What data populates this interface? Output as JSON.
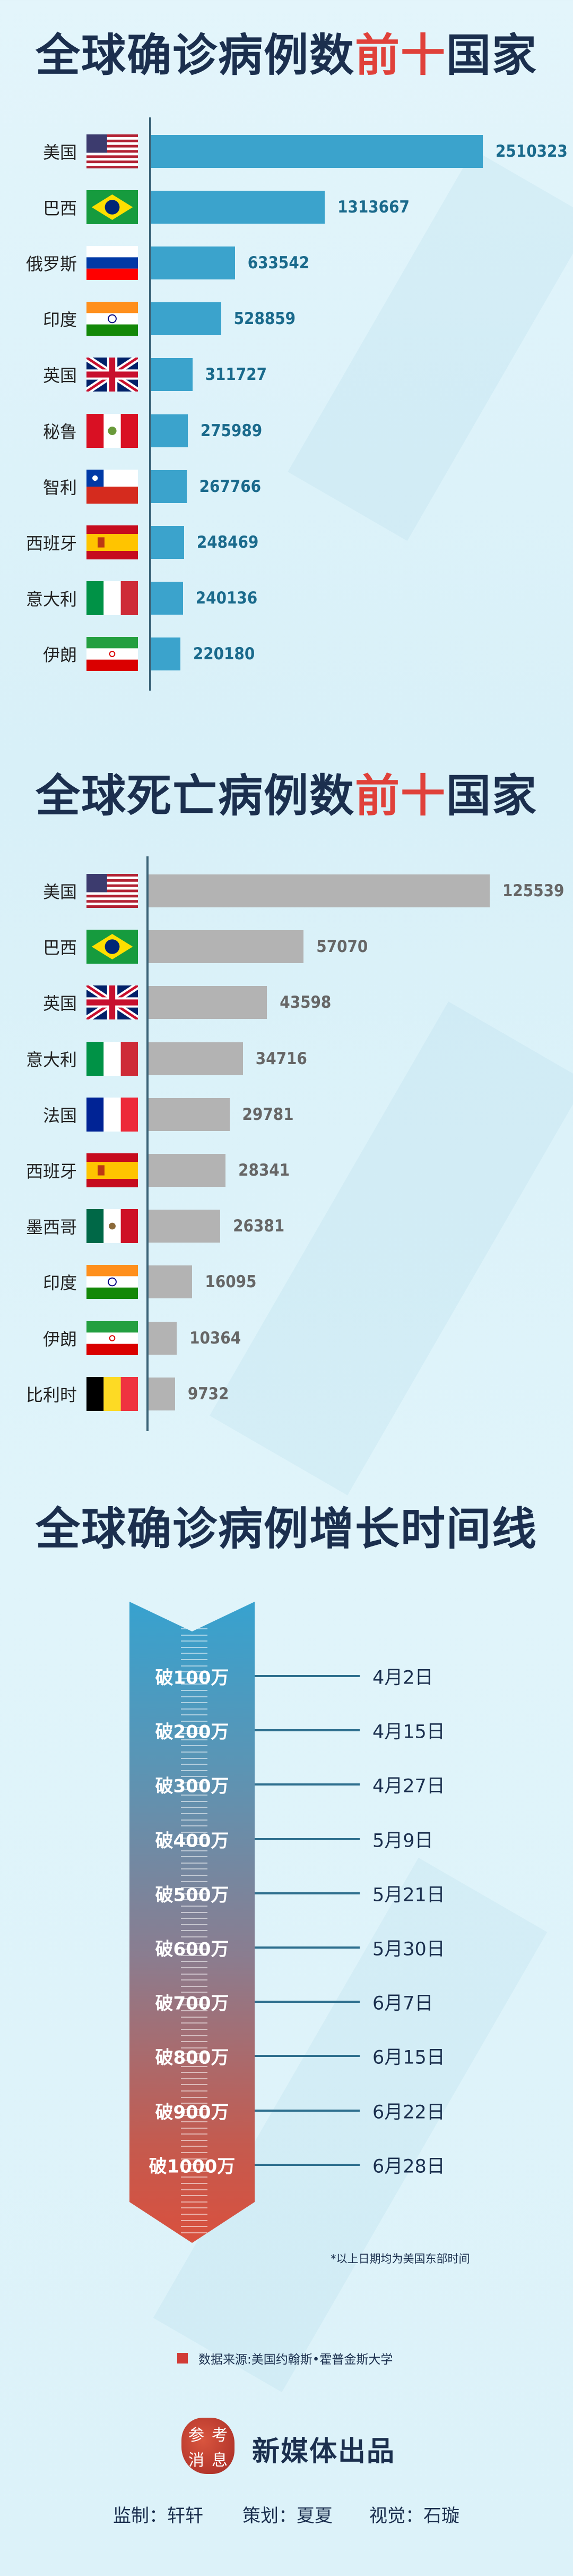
{
  "charts_titles": {
    "cases": {
      "pre": "全球确诊病例数",
      "hl": "前十",
      "post": "国家"
    },
    "deaths": {
      "pre": "全球死亡病例数",
      "hl": "前十",
      "post": "国家"
    },
    "timeline": "全球确诊病例增长时间线"
  },
  "colors": {
    "navy": "#1b2f4e",
    "accent_red": "#e0413a",
    "case_bar": "#3ba3cc",
    "case_label": "#1a6a8c",
    "death_bar": "#b3b3b3",
    "death_label": "#666666"
  },
  "chart_data": [
    {
      "type": "bar",
      "orientation": "horizontal",
      "title": "全球确诊病例数前十国家",
      "categories": [
        "美国",
        "巴西",
        "俄罗斯",
        "印度",
        "英国",
        "秘鲁",
        "智利",
        "西班牙",
        "意大利",
        "伊朗"
      ],
      "flags": [
        "us",
        "br",
        "ru",
        "in",
        "gb",
        "pe",
        "cl",
        "es",
        "it",
        "ir"
      ],
      "values": [
        2510323,
        1313667,
        633542,
        528859,
        311727,
        275989,
        267766,
        248469,
        240136,
        220180
      ],
      "value_labels": [
        "2510323",
        "1313667",
        "633542",
        "528859",
        "311727",
        "275989",
        "267766",
        "248469",
        "240136",
        "220180"
      ],
      "grid": false
    },
    {
      "type": "bar",
      "orientation": "horizontal",
      "title": "全球死亡病例数前十国家",
      "categories": [
        "美国",
        "巴西",
        "英国",
        "意大利",
        "法国",
        "西班牙",
        "墨西哥",
        "印度",
        "伊朗",
        "比利时"
      ],
      "flags": [
        "us",
        "br",
        "gb",
        "it",
        "fr",
        "es",
        "mx",
        "in",
        "ir",
        "be"
      ],
      "values": [
        125539,
        57070,
        43598,
        34716,
        29781,
        28341,
        26381,
        16095,
        10364,
        9732
      ],
      "value_labels": [
        "125539",
        "57070",
        "43598",
        "34716",
        "29781",
        "28341",
        "26381",
        "16095",
        "10364",
        "9732"
      ],
      "grid": false
    }
  ],
  "timeline": {
    "milestones": [
      {
        "label": "破100万",
        "date": "4月2日"
      },
      {
        "label": "破200万",
        "date": "4月15日"
      },
      {
        "label": "破300万",
        "date": "4月27日"
      },
      {
        "label": "破400万",
        "date": "5月9日"
      },
      {
        "label": "破500万",
        "date": "5月21日"
      },
      {
        "label": "破600万",
        "date": "5月30日"
      },
      {
        "label": "破700万",
        "date": "6月7日"
      },
      {
        "label": "破800万",
        "date": "6月15日"
      },
      {
        "label": "破900万",
        "date": "6月22日"
      },
      {
        "label": "破1000万",
        "date": "6月28日"
      }
    ],
    "note": "*以上日期均为美国东部时间"
  },
  "footer": {
    "source": "数据来源:美国约翰斯•霍普金斯大学",
    "logo_text": [
      "参",
      "考",
      "消",
      "息"
    ],
    "brand": "新媒体出品",
    "credits": [
      "监制：轩轩",
      "策划：夏夏",
      "视觉：石璇"
    ]
  }
}
